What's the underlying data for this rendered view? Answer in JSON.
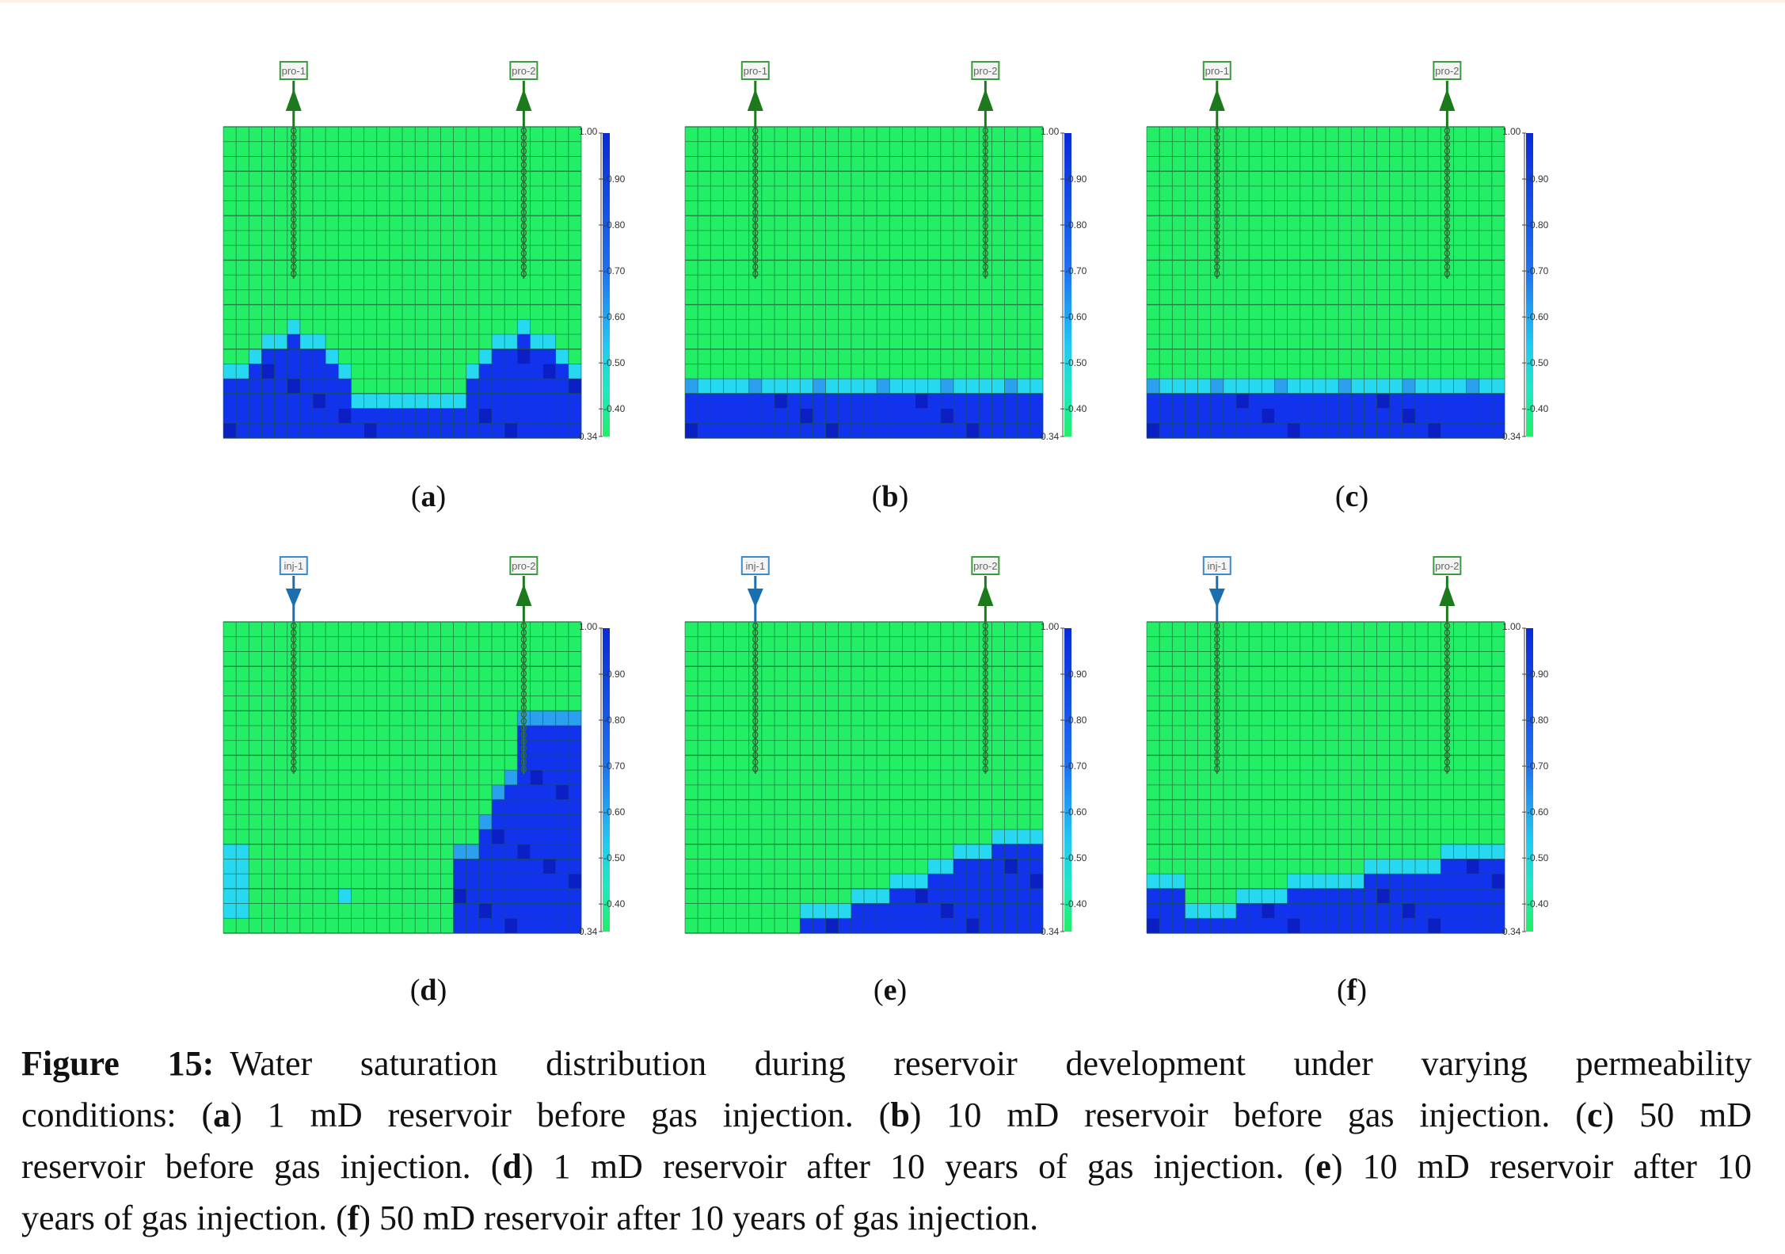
{
  "colors": {
    "gas": "#22ee66",
    "water_high": "#1133ee",
    "water_dark": "#0b1fc4",
    "transition": "#27d9f0",
    "transition2": "#2aa0ee",
    "producer_well": "#1c7a1c",
    "injector_well": "#1a6fb0",
    "grid": "#1a5530"
  },
  "colorbar": {
    "ticks": [
      "1.00",
      "0.90",
      "0.80",
      "0.70",
      "0.60",
      "0.50",
      "0.40",
      "0.34"
    ]
  },
  "panels": [
    {
      "id": "a",
      "label": "a",
      "well1": "pro-1",
      "well2": "pro-2",
      "well1_type": "producer"
    },
    {
      "id": "b",
      "label": "b",
      "well1": "pro-1",
      "well2": "pro-2",
      "well1_type": "producer"
    },
    {
      "id": "c",
      "label": "c",
      "well1": "pro-1",
      "well2": "pro-2",
      "well1_type": "producer"
    },
    {
      "id": "d",
      "label": "d",
      "well1": "inj-1",
      "well2": "pro-2",
      "well1_type": "injector"
    },
    {
      "id": "e",
      "label": "e",
      "well1": "inj-1",
      "well2": "pro-2",
      "well1_type": "injector"
    },
    {
      "id": "f",
      "label": "f",
      "well1": "inj-1",
      "well2": "pro-2",
      "well1_type": "injector"
    }
  ],
  "caption": {
    "figure_label": "Figure 15:",
    "line1": "Water saturation distribution during reservoir development under varying permeability",
    "line2_a": "conditions: (",
    "a": "a",
    "line2_b": ") 1 mD reservoir before gas injection. (",
    "b": "b",
    "line2_c": ") 10 mD reservoir before gas injection. (",
    "c": "c",
    "line2_d": ") 50 mD",
    "line3_a": "reservoir before gas injection. (",
    "d": "d",
    "line3_b": ") 1 mD reservoir after 10 years of gas injection. (",
    "e": "e",
    "line3_c": ") 10 mD reservoir after 10",
    "line4_a": "years of gas injection. (",
    "f": "f",
    "line4_b": ") 50 mD reservoir after 10 years of gas injection."
  }
}
